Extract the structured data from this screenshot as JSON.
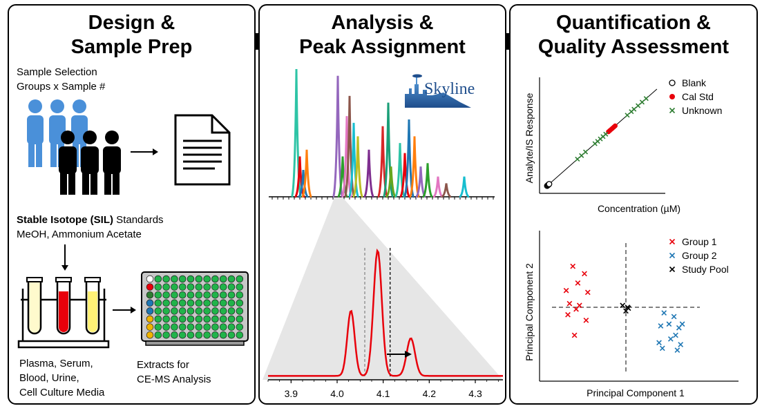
{
  "panels": {
    "design": {
      "title1": "Design &",
      "title2": "Sample Prep",
      "selection1": "Sample Selection",
      "selection2": "Groups x Sample #",
      "sil_bold": "Stable Isotope (SIL)",
      "sil_rest": " Standards",
      "solvents": "MeOH, Ammonium Acetate",
      "matrix1": "Plasma, Serum,",
      "matrix2": "Blood, Urine,",
      "matrix3": "Cell Culture Media",
      "extracts1": "Extracts for",
      "extracts2": "CE-MS Analysis"
    },
    "analysis": {
      "title1": "Analysis &",
      "title2": "Peak Assignment",
      "logo_text": "Skyline"
    },
    "quant": {
      "title1": "Quantification &",
      "title2": "Quality Assessment"
    }
  },
  "colors": {
    "red": "#e8000b",
    "green": "#2e7d32",
    "blue": "#1f77b4",
    "person_blue": "#4a90d9",
    "skyline_blue": "#1f4e8c"
  },
  "chart_data": [
    {
      "type": "line",
      "title": "",
      "xlabel": "",
      "ylabel": "",
      "x": [
        3.85,
        3.95,
        4.0,
        4.02,
        4.03,
        4.045,
        4.07,
        4.085,
        4.1,
        4.13,
        4.15,
        4.16,
        4.175,
        4.2,
        4.25,
        4.35
      ],
      "y": [
        0.02,
        0.02,
        0.03,
        0.2,
        0.52,
        0.15,
        0.35,
        1.0,
        0.35,
        0.05,
        0.18,
        0.3,
        0.08,
        0.02,
        0.02,
        0.02
      ],
      "xticks": [
        "3.9",
        "4.0",
        "4.1",
        "4.2",
        "4.3"
      ],
      "xlim": [
        3.85,
        4.36
      ]
    },
    {
      "type": "scatter",
      "title": "",
      "xlabel": "Concentration (µM)",
      "ylabel": "Analyte/IS Response",
      "legend": [
        "Blank",
        "Cal Std",
        "Unknown"
      ],
      "legend_position": "top-right",
      "series": [
        {
          "name": "Blank",
          "x": [
            0.05,
            0.1,
            0.15,
            0.2
          ],
          "y": [
            0.05,
            0.1,
            0.15,
            0.2
          ]
        },
        {
          "name": "Cal Std",
          "x": [
            4.6,
            4.7,
            4.8,
            4.9,
            5.0,
            5.1
          ],
          "y": [
            4.6,
            4.7,
            4.8,
            4.9,
            5.0,
            5.1
          ]
        },
        {
          "name": "Unknown",
          "x": [
            2.3,
            2.6,
            2.9,
            3.6,
            3.8,
            4.0,
            4.2,
            4.4,
            6.0,
            6.3,
            6.5,
            6.8,
            7.1,
            7.4
          ],
          "y": [
            2.3,
            2.6,
            2.9,
            3.6,
            3.8,
            4.0,
            4.2,
            4.4,
            6.0,
            6.3,
            6.5,
            6.8,
            7.1,
            7.4
          ]
        }
      ]
    },
    {
      "type": "scatter",
      "title": "",
      "xlabel": "Principal Component 1",
      "ylabel": "Principal Component 2",
      "legend": [
        "Group 1",
        "Group 2",
        "Study Pool"
      ],
      "legend_position": "top-right",
      "series": [
        {
          "name": "Group 1",
          "x": [
            -3.2,
            -3.6,
            -2.5,
            -2.9,
            -2.3,
            -3.4,
            -2.8,
            -3.0,
            -2.4,
            -3.1,
            -3.5
          ],
          "y": [
            2.2,
            0.9,
            1.8,
            1.3,
            0.8,
            0.2,
            0.1,
            -0.1,
            -0.7,
            -1.5,
            -0.4
          ]
        },
        {
          "name": "Group 2",
          "x": [
            2.3,
            2.9,
            3.4,
            2.6,
            2.1,
            3.2,
            3.0,
            2.0,
            2.7,
            2.2,
            3.3,
            3.1
          ],
          "y": [
            -0.3,
            -0.5,
            -0.9,
            -0.9,
            -1.0,
            -1.1,
            -1.5,
            -1.9,
            -1.7,
            -2.2,
            -2.0,
            -2.3
          ]
        },
        {
          "name": "Study Pool",
          "x": [
            -0.2,
            0.1,
            0.0,
            0.15
          ],
          "y": [
            0.1,
            0.0,
            -0.2,
            -0.05
          ]
        }
      ]
    }
  ]
}
